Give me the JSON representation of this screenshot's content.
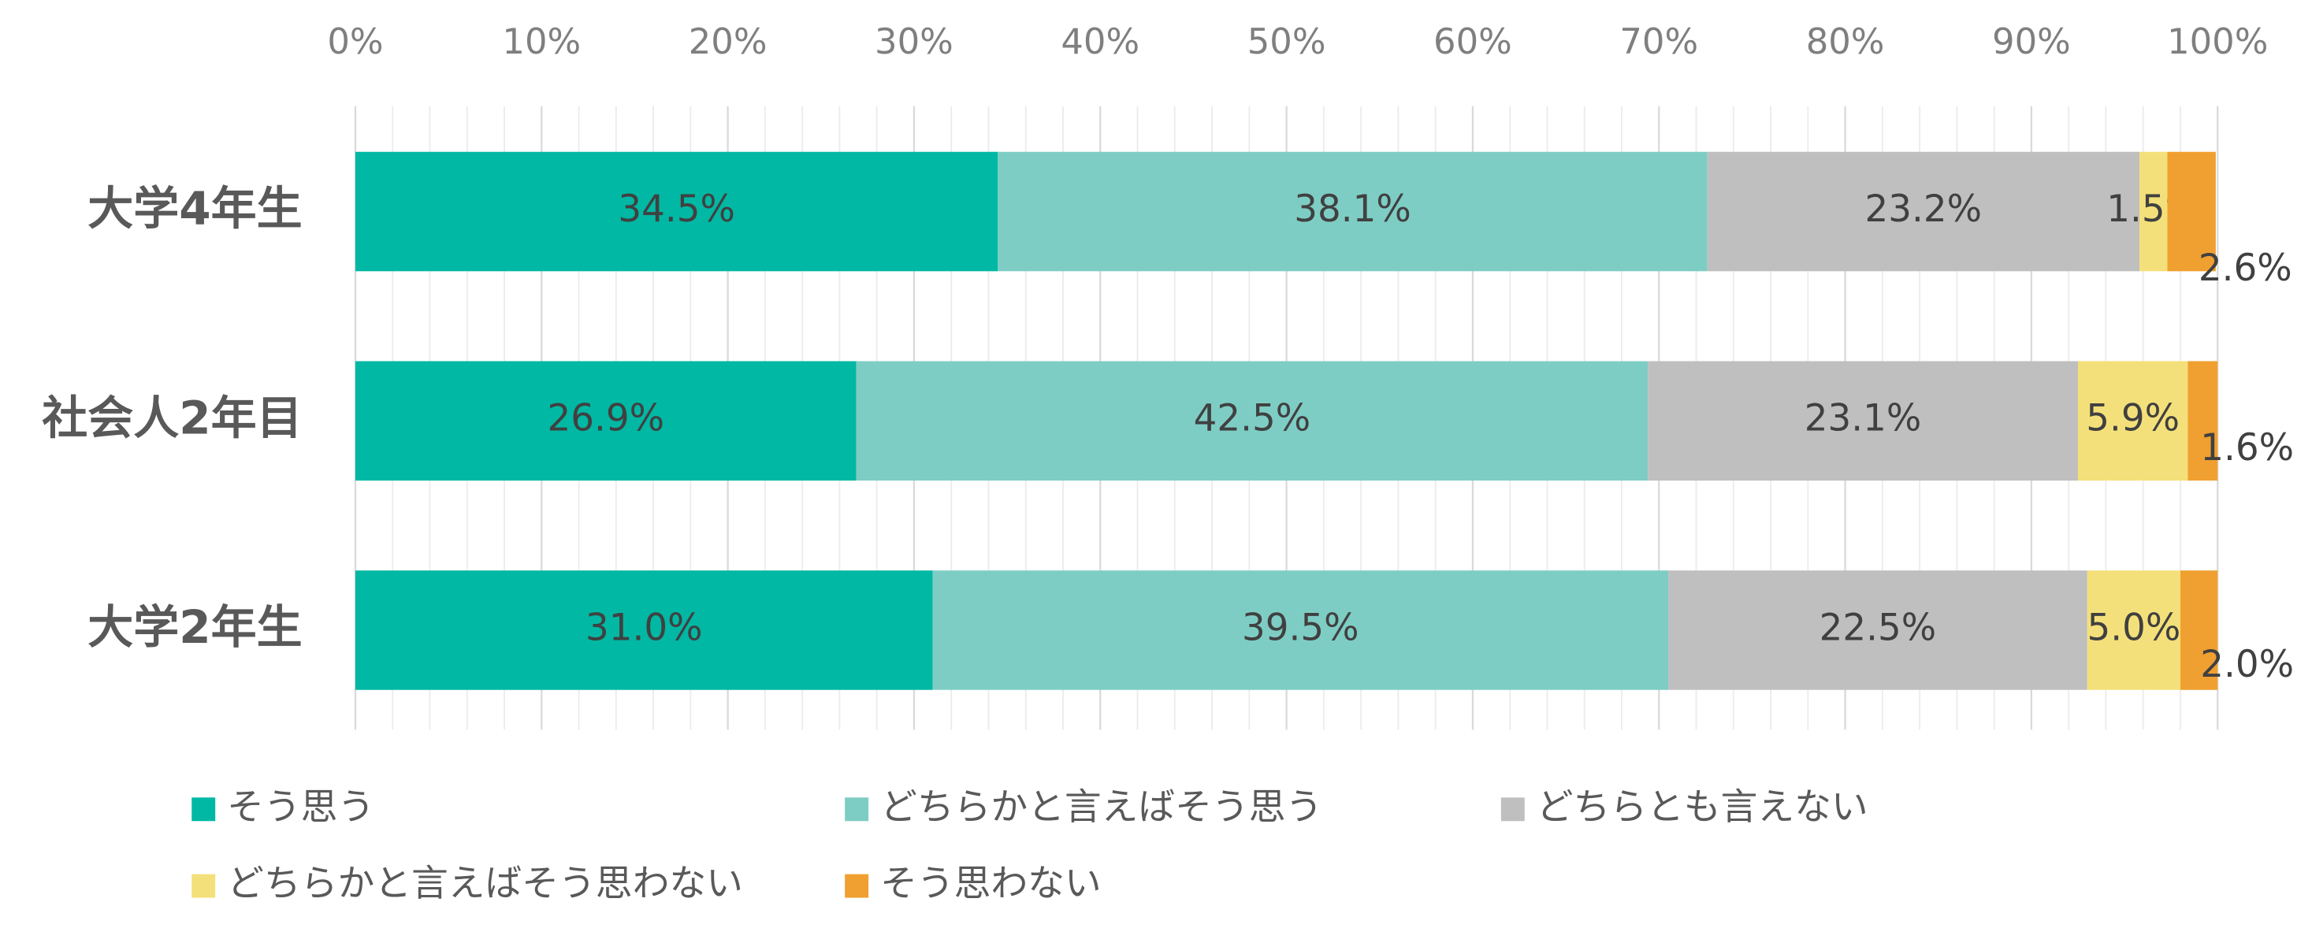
{
  "chart_data": {
    "type": "stacked-bar-horizontal",
    "categories": [
      "大学4年生",
      "社会人2年目",
      "大学2年生"
    ],
    "series": [
      {
        "name": "そう思う",
        "color": "#00b8a3",
        "values": [
          34.5,
          26.9,
          31.0
        ],
        "value_labels": [
          "34.5%",
          "26.9%",
          "31.0%"
        ]
      },
      {
        "name": "どちらかと言えばそう思う",
        "color": "#7ecdc4",
        "values": [
          38.1,
          42.5,
          39.5
        ],
        "value_labels": [
          "38.1%",
          "42.5%",
          "39.5%"
        ]
      },
      {
        "name": "どちらとも言えない",
        "color": "#bfbfbf",
        "values": [
          23.2,
          23.1,
          22.5
        ],
        "value_labels": [
          "23.2%",
          "23.1%",
          "22.5%"
        ]
      },
      {
        "name": "どちらかと言えばそう思わない",
        "color": "#f4e07a",
        "values": [
          1.5,
          5.9,
          5.0
        ],
        "value_labels": [
          "1.5%",
          "5.9%",
          "5.0%"
        ]
      },
      {
        "name": "そう思わない",
        "color": "#f0a030",
        "values": [
          2.6,
          1.6,
          2.0
        ],
        "value_labels": [
          "2.6%",
          "1.6%",
          "2.0%"
        ]
      }
    ],
    "xlim": [
      0,
      100
    ],
    "xticks": [
      {
        "value": 0,
        "label": "0%"
      },
      {
        "value": 10,
        "label": "10%"
      },
      {
        "value": 20,
        "label": "20%"
      },
      {
        "value": 30,
        "label": "30%"
      },
      {
        "value": 40,
        "label": "40%"
      },
      {
        "value": 50,
        "label": "50%"
      },
      {
        "value": 60,
        "label": "60%"
      },
      {
        "value": 70,
        "label": "70%"
      },
      {
        "value": 80,
        "label": "80%"
      },
      {
        "value": 90,
        "label": "90%"
      },
      {
        "value": 100,
        "label": "100%"
      }
    ],
    "grid": true,
    "legend": "bottom"
  }
}
